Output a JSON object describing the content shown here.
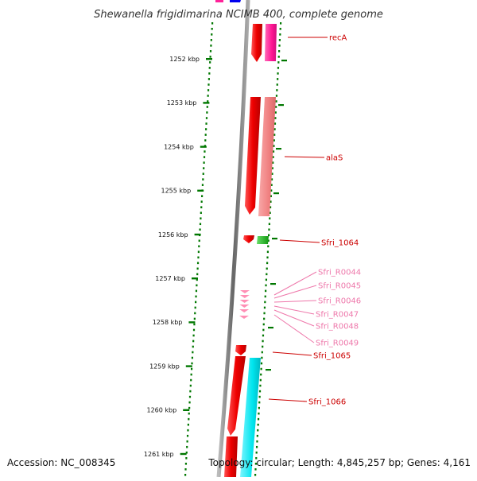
{
  "title": "Shewanella frigidimarina NCIMB 400, complete genome",
  "footer": {
    "accession": "Accession: NC_008345",
    "topology": "Topology: circular; Length: 4,845,257 bp; Genes: 4,161"
  },
  "ruler": [
    {
      "label": "1252 kbp"
    },
    {
      "label": "1253 kbp"
    },
    {
      "label": "1254 kbp"
    },
    {
      "label": "1255 kbp"
    },
    {
      "label": "1256 kbp"
    },
    {
      "label": "1257 kbp"
    },
    {
      "label": "1258 kbp"
    },
    {
      "label": "1259 kbp"
    },
    {
      "label": "1260 kbp"
    },
    {
      "label": "1261 kbp"
    }
  ],
  "genes": [
    {
      "name": "recA",
      "type": "CDS"
    },
    {
      "name": "alaS",
      "type": "CDS"
    },
    {
      "name": "Sfri_1064",
      "type": "CDS"
    },
    {
      "name": "Sfri_R0044",
      "type": "tRNA"
    },
    {
      "name": "Sfri_R0045",
      "type": "tRNA"
    },
    {
      "name": "Sfri_R0046",
      "type": "tRNA"
    },
    {
      "name": "Sfri_R0047",
      "type": "tRNA"
    },
    {
      "name": "Sfri_R0048",
      "type": "tRNA"
    },
    {
      "name": "Sfri_R0049",
      "type": "tRNA"
    },
    {
      "name": "Sfri_1065",
      "type": "CDS"
    },
    {
      "name": "Sfri_1066",
      "type": "CDS"
    }
  ],
  "colors": {
    "cds": "#ee0000",
    "cds_label": "#cc0000",
    "trna": "#ff8fb5",
    "trna_label": "#ee77aa",
    "backbone": "#888888",
    "ticks": "#007700",
    "cog_magenta": "#ff1493",
    "cog_salmon": "#f08080",
    "cog_green": "#22bb22",
    "cog_cyan": "#00e5ee",
    "cog_blue": "#0000ee"
  }
}
